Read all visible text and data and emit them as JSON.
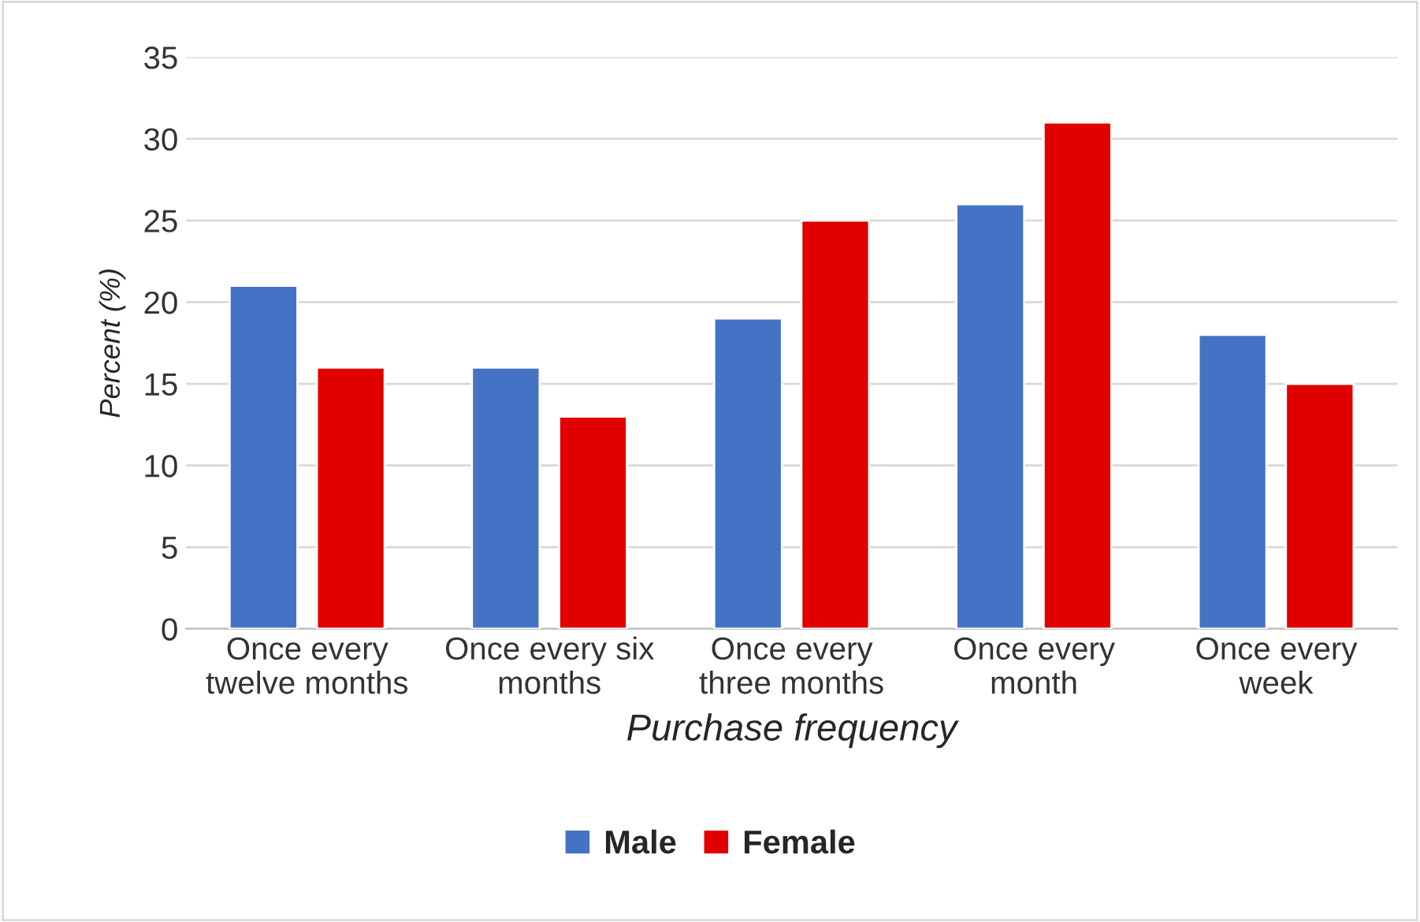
{
  "chart_data": {
    "type": "bar",
    "xlabel": "Purchase frequency",
    "ylabel": "Percent (%)",
    "categories": [
      "Once every\ntwelve months",
      "Once every six\nmonths",
      "Once every\nthree months",
      "Once every\nmonth",
      "Once every\nweek"
    ],
    "series": [
      {
        "name": "Male",
        "color": "#4472c4",
        "values": [
          21,
          16,
          19,
          26,
          18
        ]
      },
      {
        "name": "Female",
        "color": "#e00000",
        "values": [
          16,
          13,
          25,
          31,
          15
        ]
      }
    ],
    "ylim": [
      0,
      35
    ],
    "yticks": [
      0,
      5,
      10,
      15,
      20,
      25,
      30,
      35
    ],
    "grid": "y",
    "legend": "bottom"
  }
}
